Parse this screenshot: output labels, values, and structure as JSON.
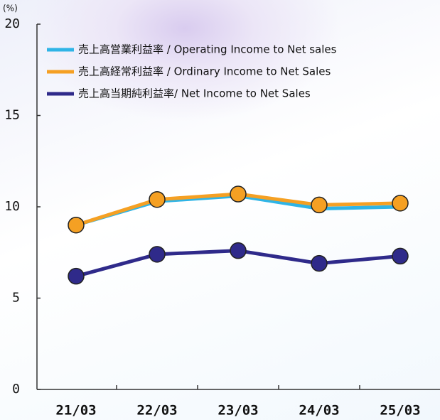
{
  "chart_data": {
    "type": "line",
    "y_unit": "(%)",
    "categories": [
      "21/03",
      "22/03",
      "23/03",
      "24/03",
      "25/03"
    ],
    "series": [
      {
        "name": "売上高営業利益率 / Operating Income to Net sales",
        "color": "#2fb4e6",
        "marker": false,
        "values": [
          9.0,
          10.3,
          10.6,
          9.9,
          10.0
        ]
      },
      {
        "name": "売上高経常利益率 / Ordinary Income to Net Sales",
        "color": "#f5a023",
        "marker": true,
        "values": [
          9.0,
          10.4,
          10.7,
          10.1,
          10.2
        ]
      },
      {
        "name": "売上高当期純利益率/ Net Income to Net Sales",
        "color": "#2f2a8a",
        "marker": true,
        "values": [
          6.2,
          7.4,
          7.6,
          6.9,
          7.3
        ]
      }
    ],
    "ylim": [
      0,
      20
    ],
    "yticks": [
      0,
      5,
      10,
      15,
      20
    ],
    "grid": false,
    "legend": "top-left"
  }
}
